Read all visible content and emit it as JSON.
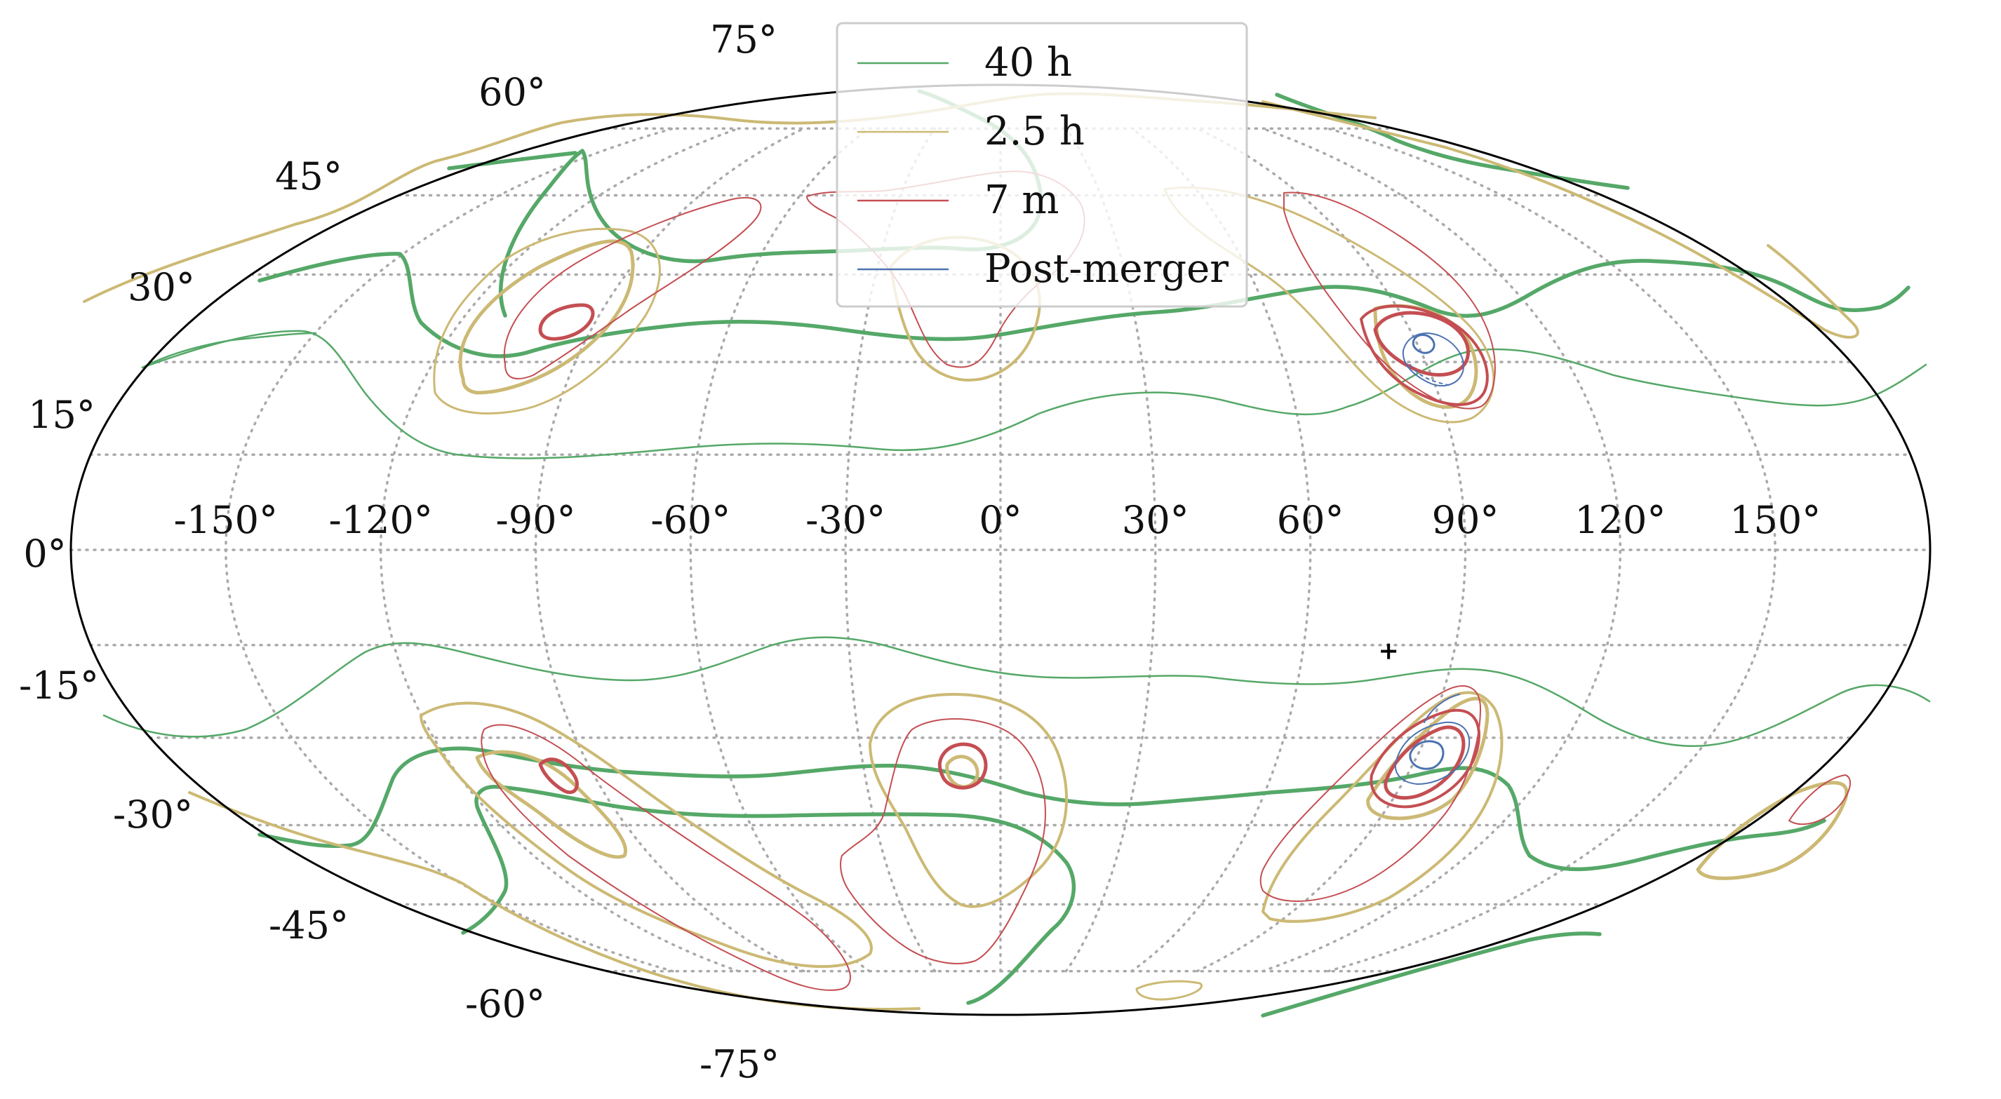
{
  "chart_data": {
    "type": "contour-skymap",
    "projection": "mollweide",
    "grid": true,
    "legend_placement": "upper-center",
    "longitude_ticks": [
      "-150°",
      "-120°",
      "-90°",
      "-60°",
      "-30°",
      "0°",
      "30°",
      "60°",
      "90°",
      "120°",
      "150°"
    ],
    "latitude_ticks": [
      "75°",
      "60°",
      "45°",
      "30°",
      "15°",
      "0°",
      "-15°",
      "-30°",
      "-45°",
      "-60°",
      "-75°"
    ],
    "series": [
      {
        "name": "40 h",
        "color": "#55a868"
      },
      {
        "name": "2.5 h",
        "color": "#ccb974"
      },
      {
        "name": "7 m",
        "color": "#c44e52"
      },
      {
        "name": "Post-merger",
        "color": "#4c72b0"
      }
    ],
    "marker": {
      "symbol": "+",
      "lon": 77,
      "lat": -16
    }
  }
}
